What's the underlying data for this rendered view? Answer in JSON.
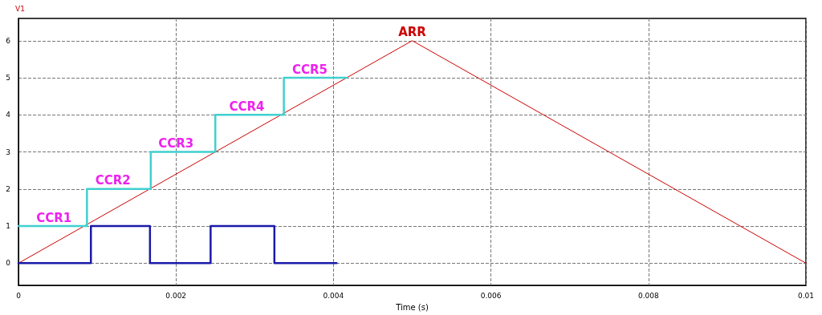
{
  "chart_data": {
    "type": "line",
    "xlabel": "Time (s)",
    "ylabel": "V1",
    "xlim": [
      0,
      0.01
    ],
    "xticks": [
      0,
      0.002,
      0.004,
      0.006,
      0.008,
      0.01
    ],
    "ylim": [
      -0.6,
      6.6
    ],
    "yticks": [
      0,
      1,
      2,
      3,
      4,
      5,
      6
    ],
    "grid": true,
    "marker": "none",
    "line_style": "solid",
    "series": [
      {
        "color": "#cc0000",
        "x": [
          0,
          0.005,
          0.01
        ],
        "values": [
          0,
          6,
          0
        ]
      },
      {
        "type": "step",
        "color": "#40d0d0",
        "x": [
          0,
          0.00087,
          0.00168,
          0.0025,
          0.00337,
          0.00417
        ],
        "values": [
          1,
          2,
          3,
          4,
          5,
          5
        ]
      },
      {
        "type": "step",
        "color": "#1a1aaa",
        "x": [
          0,
          0.00092,
          0.00167,
          0.00244,
          0.00325,
          0.00404
        ],
        "values": [
          0,
          1,
          0,
          1,
          0,
          0
        ]
      }
    ],
    "annotations": [
      {
        "text": "CCR1",
        "x": 0.00045,
        "y": 1
      },
      {
        "text": "CCR2",
        "x": 0.0012,
        "y": 2
      },
      {
        "text": "CCR3",
        "x": 0.002,
        "y": 3
      },
      {
        "text": "CCR4",
        "x": 0.0029,
        "y": 4
      },
      {
        "text": "CCR5",
        "x": 0.0037,
        "y": 5
      },
      {
        "text": "ARR",
        "x": 0.005,
        "y": 6
      }
    ]
  }
}
